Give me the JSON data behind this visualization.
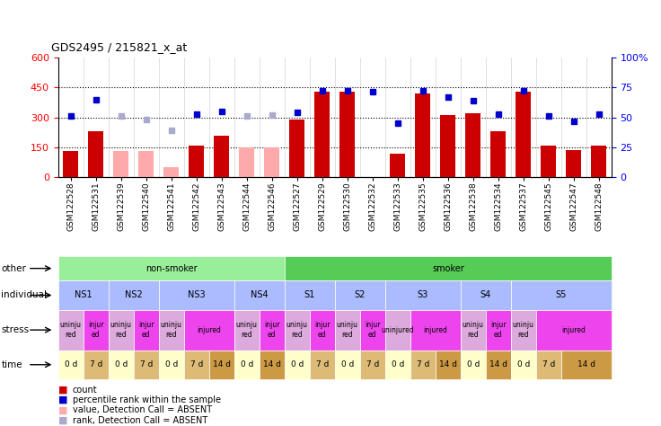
{
  "title": "GDS2495 / 215821_x_at",
  "samples": [
    "GSM122528",
    "GSM122531",
    "GSM122539",
    "GSM122540",
    "GSM122541",
    "GSM122542",
    "GSM122543",
    "GSM122544",
    "GSM122546",
    "GSM122527",
    "GSM122529",
    "GSM122530",
    "GSM122532",
    "GSM122533",
    "GSM122535",
    "GSM122536",
    "GSM122538",
    "GSM122534",
    "GSM122537",
    "GSM122545",
    "GSM122547",
    "GSM122548"
  ],
  "bar_values": [
    130,
    230,
    null,
    null,
    null,
    160,
    210,
    null,
    null,
    290,
    430,
    430,
    null,
    120,
    420,
    310,
    320,
    230,
    430,
    160,
    135,
    160
  ],
  "bar_absent": [
    null,
    null,
    130,
    130,
    50,
    null,
    null,
    150,
    150,
    null,
    null,
    null,
    null,
    null,
    null,
    null,
    null,
    null,
    null,
    null,
    null,
    null
  ],
  "rank_present": [
    305,
    390,
    null,
    null,
    null,
    315,
    330,
    null,
    null,
    325,
    435,
    435,
    430,
    270,
    435,
    400,
    385,
    315,
    435,
    305,
    280,
    315
  ],
  "rank_absent": [
    null,
    null,
    305,
    290,
    235,
    null,
    null,
    305,
    310,
    null,
    null,
    null,
    null,
    null,
    null,
    null,
    null,
    null,
    null,
    null,
    null,
    null
  ],
  "ylim_left": [
    0,
    600
  ],
  "ylim_right": [
    0,
    100
  ],
  "yticks_left": [
    0,
    150,
    300,
    450,
    600
  ],
  "ytick_labels_left": [
    "0",
    "150",
    "300",
    "450",
    "600"
  ],
  "yticks_right": [
    0,
    25,
    50,
    75,
    100
  ],
  "ytick_labels_right": [
    "0",
    "25",
    "50",
    "75",
    "100%"
  ],
  "hlines": [
    150,
    300,
    450
  ],
  "color_bar_present": "#cc0000",
  "color_bar_absent": "#ffaaaa",
  "color_rank_present": "#0000cc",
  "color_rank_absent": "#aaaacc",
  "other_groups": [
    {
      "label": "non-smoker",
      "start": 0,
      "end": 9,
      "color": "#99ee99"
    },
    {
      "label": "smoker",
      "start": 9,
      "end": 22,
      "color": "#55cc55"
    }
  ],
  "individual_groups": [
    {
      "label": "NS1",
      "start": 0,
      "end": 2,
      "color": "#aabbff"
    },
    {
      "label": "NS2",
      "start": 2,
      "end": 4,
      "color": "#aabbff"
    },
    {
      "label": "NS3",
      "start": 4,
      "end": 7,
      "color": "#aabbff"
    },
    {
      "label": "NS4",
      "start": 7,
      "end": 9,
      "color": "#aabbff"
    },
    {
      "label": "S1",
      "start": 9,
      "end": 11,
      "color": "#aabbff"
    },
    {
      "label": "S2",
      "start": 11,
      "end": 13,
      "color": "#aabbff"
    },
    {
      "label": "S3",
      "start": 13,
      "end": 16,
      "color": "#aabbff"
    },
    {
      "label": "S4",
      "start": 16,
      "end": 18,
      "color": "#aabbff"
    },
    {
      "label": "S5",
      "start": 18,
      "end": 22,
      "color": "#aabbff"
    }
  ],
  "stress_row": [
    {
      "label": "uninju\nred",
      "start": 0,
      "end": 1,
      "color": "#ddaadd"
    },
    {
      "label": "injur\ned",
      "start": 1,
      "end": 2,
      "color": "#ee44ee"
    },
    {
      "label": "uninju\nred",
      "start": 2,
      "end": 3,
      "color": "#ddaadd"
    },
    {
      "label": "injur\ned",
      "start": 3,
      "end": 4,
      "color": "#ee44ee"
    },
    {
      "label": "uninju\nred",
      "start": 4,
      "end": 5,
      "color": "#ddaadd"
    },
    {
      "label": "injured",
      "start": 5,
      "end": 7,
      "color": "#ee44ee"
    },
    {
      "label": "uninju\nred",
      "start": 7,
      "end": 8,
      "color": "#ddaadd"
    },
    {
      "label": "injur\ned",
      "start": 8,
      "end": 9,
      "color": "#ee44ee"
    },
    {
      "label": "uninju\nred",
      "start": 9,
      "end": 10,
      "color": "#ddaadd"
    },
    {
      "label": "injur\ned",
      "start": 10,
      "end": 11,
      "color": "#ee44ee"
    },
    {
      "label": "uninju\nred",
      "start": 11,
      "end": 12,
      "color": "#ddaadd"
    },
    {
      "label": "injur\ned",
      "start": 12,
      "end": 13,
      "color": "#ee44ee"
    },
    {
      "label": "uninjured",
      "start": 13,
      "end": 14,
      "color": "#ddaadd"
    },
    {
      "label": "injured",
      "start": 14,
      "end": 16,
      "color": "#ee44ee"
    },
    {
      "label": "uninju\nred",
      "start": 16,
      "end": 17,
      "color": "#ddaadd"
    },
    {
      "label": "injur\ned",
      "start": 17,
      "end": 18,
      "color": "#ee44ee"
    },
    {
      "label": "uninju\nred",
      "start": 18,
      "end": 19,
      "color": "#ddaadd"
    },
    {
      "label": "injured",
      "start": 19,
      "end": 22,
      "color": "#ee44ee"
    }
  ],
  "time_row": [
    {
      "label": "0 d",
      "start": 0,
      "end": 1,
      "color": "#ffffcc"
    },
    {
      "label": "7 d",
      "start": 1,
      "end": 2,
      "color": "#ddbb77"
    },
    {
      "label": "0 d",
      "start": 2,
      "end": 3,
      "color": "#ffffcc"
    },
    {
      "label": "7 d",
      "start": 3,
      "end": 4,
      "color": "#ddbb77"
    },
    {
      "label": "0 d",
      "start": 4,
      "end": 5,
      "color": "#ffffcc"
    },
    {
      "label": "7 d",
      "start": 5,
      "end": 6,
      "color": "#ddbb77"
    },
    {
      "label": "14 d",
      "start": 6,
      "end": 7,
      "color": "#cc9944"
    },
    {
      "label": "0 d",
      "start": 7,
      "end": 8,
      "color": "#ffffcc"
    },
    {
      "label": "14 d",
      "start": 8,
      "end": 9,
      "color": "#cc9944"
    },
    {
      "label": "0 d",
      "start": 9,
      "end": 10,
      "color": "#ffffcc"
    },
    {
      "label": "7 d",
      "start": 10,
      "end": 11,
      "color": "#ddbb77"
    },
    {
      "label": "0 d",
      "start": 11,
      "end": 12,
      "color": "#ffffcc"
    },
    {
      "label": "7 d",
      "start": 12,
      "end": 13,
      "color": "#ddbb77"
    },
    {
      "label": "0 d",
      "start": 13,
      "end": 14,
      "color": "#ffffcc"
    },
    {
      "label": "7 d",
      "start": 14,
      "end": 15,
      "color": "#ddbb77"
    },
    {
      "label": "14 d",
      "start": 15,
      "end": 16,
      "color": "#cc9944"
    },
    {
      "label": "0 d",
      "start": 16,
      "end": 17,
      "color": "#ffffcc"
    },
    {
      "label": "14 d",
      "start": 17,
      "end": 18,
      "color": "#cc9944"
    },
    {
      "label": "0 d",
      "start": 18,
      "end": 19,
      "color": "#ffffcc"
    },
    {
      "label": "7 d",
      "start": 19,
      "end": 20,
      "color": "#ddbb77"
    },
    {
      "label": "14 d",
      "start": 20,
      "end": 22,
      "color": "#cc9944"
    }
  ],
  "legend_items": [
    {
      "label": "count",
      "color": "#cc0000"
    },
    {
      "label": "percentile rank within the sample",
      "color": "#0000cc"
    },
    {
      "label": "value, Detection Call = ABSENT",
      "color": "#ffaaaa"
    },
    {
      "label": "rank, Detection Call = ABSENT",
      "color": "#aaaacc"
    }
  ]
}
